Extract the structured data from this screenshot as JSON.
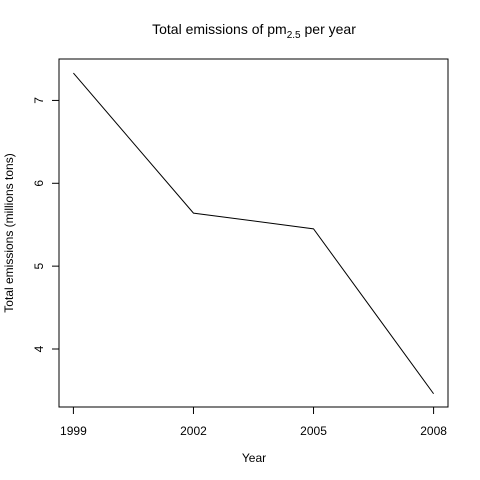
{
  "chart_data": {
    "type": "line",
    "title_parts": {
      "before": "Total emissions of pm",
      "subscript": "2.5",
      "after": " per year"
    },
    "xlabel": "Year",
    "ylabel": "Total emissions (millions tons)",
    "x": [
      1999,
      2002,
      2005,
      2008
    ],
    "series": [
      {
        "values": [
          7.33,
          5.64,
          5.45,
          3.46
        ]
      }
    ],
    "xticks": [
      1999,
      2002,
      2005,
      2008
    ],
    "xtick_labels": [
      "1999",
      "2002",
      "2005",
      "2008"
    ],
    "yticks": [
      4,
      5,
      6,
      7
    ],
    "ytick_labels": [
      "4",
      "5",
      "6",
      "7"
    ],
    "xlim": [
      1998.64,
      2008.36
    ],
    "ylim": [
      3.3,
      7.5
    ],
    "grid": false,
    "colors": {
      "line": "#000000",
      "frame": "#000000",
      "background": "#ffffff"
    }
  }
}
